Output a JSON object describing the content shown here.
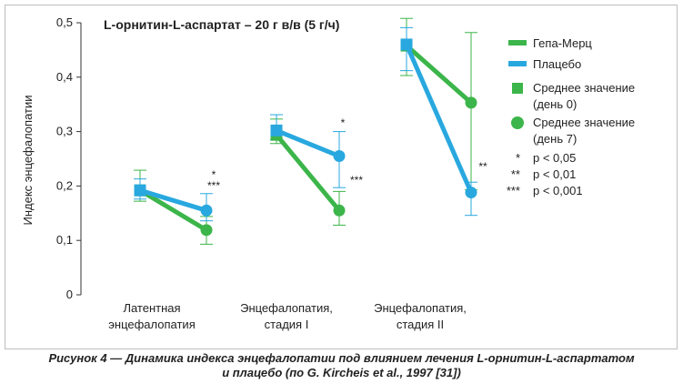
{
  "chart_data": {
    "type": "line",
    "title": "L-орнитин-L-аспартат – 20 г в/в (5 г/ч)",
    "ylabel": "Индекс энцефалопатии",
    "xlabel": "",
    "ylim": [
      0,
      0.5
    ],
    "yticks": [
      "0",
      "0,1",
      "0,2",
      "0,3",
      "0,4",
      "0,5"
    ],
    "yticks_values": [
      0,
      0.1,
      0.2,
      0.3,
      0.4,
      0.5
    ],
    "grid": false,
    "legend_position": "right",
    "groups": [
      {
        "label_line1": "Латентная",
        "label_line2": "энцефалопатия"
      },
      {
        "label_line1": "Энцефалопатия,",
        "label_line2": "стадия I"
      },
      {
        "label_line1": "Энцефалопатия,",
        "label_line2": "стадия II"
      }
    ],
    "series": [
      {
        "name": "Гепа-Мерц",
        "color": "#3cb54a",
        "day0": [
          0.192,
          0.294,
          0.458
        ],
        "day7": [
          0.119,
          0.155,
          0.353
        ],
        "day0_err": [
          [
            0.172,
            0.229
          ],
          [
            0.278,
            0.323
          ],
          [
            0.403,
            0.508
          ]
        ],
        "day7_err": [
          [
            0.093,
            0.144
          ],
          [
            0.128,
            0.19
          ],
          [
            0.193,
            0.482
          ]
        ]
      },
      {
        "name": "Плацебо",
        "color": "#29a8df",
        "day0": [
          0.192,
          0.302,
          0.46
        ],
        "day7": [
          0.155,
          0.255,
          0.188
        ],
        "day0_err": [
          [
            0.176,
            0.213
          ],
          [
            0.285,
            0.331
          ],
          [
            0.412,
            0.491
          ]
        ],
        "day7_err": [
          [
            0.136,
            0.186
          ],
          [
            0.197,
            0.3
          ],
          [
            0.146,
            0.207
          ]
        ]
      }
    ],
    "annotations": [
      {
        "group": 0,
        "lines": [
          "*",
          "***"
        ]
      },
      {
        "group": 1,
        "lines": [
          "*",
          "***"
        ]
      },
      {
        "group": 2,
        "lines": [
          "**"
        ]
      }
    ],
    "legend": {
      "lines": [
        {
          "label": "Гепа-Мерц",
          "color": "#3cb54a"
        },
        {
          "label": "Плацебо",
          "color": "#29a8df"
        }
      ],
      "markers": [
        {
          "shape": "square",
          "label_line1": "Среднее значение",
          "label_line2": "(день 0)",
          "color": "#3cb54a"
        },
        {
          "shape": "circle",
          "label_line1": "Среднее значение",
          "label_line2": "(день 7)",
          "color": "#3cb54a"
        }
      ],
      "significance": [
        {
          "stars": "*",
          "label": "p < 0,05"
        },
        {
          "stars": "**",
          "label": "p < 0,01"
        },
        {
          "stars": "***",
          "label": "p < 0,001"
        }
      ]
    },
    "caption_line1": "Рисунок 4 — Динамика индекса энцефалопатии под влиянием лечения L-орнитин-L-аспартатом",
    "caption_line2": "и плацебо (по G. Kircheis et al., 1997 [31])"
  }
}
